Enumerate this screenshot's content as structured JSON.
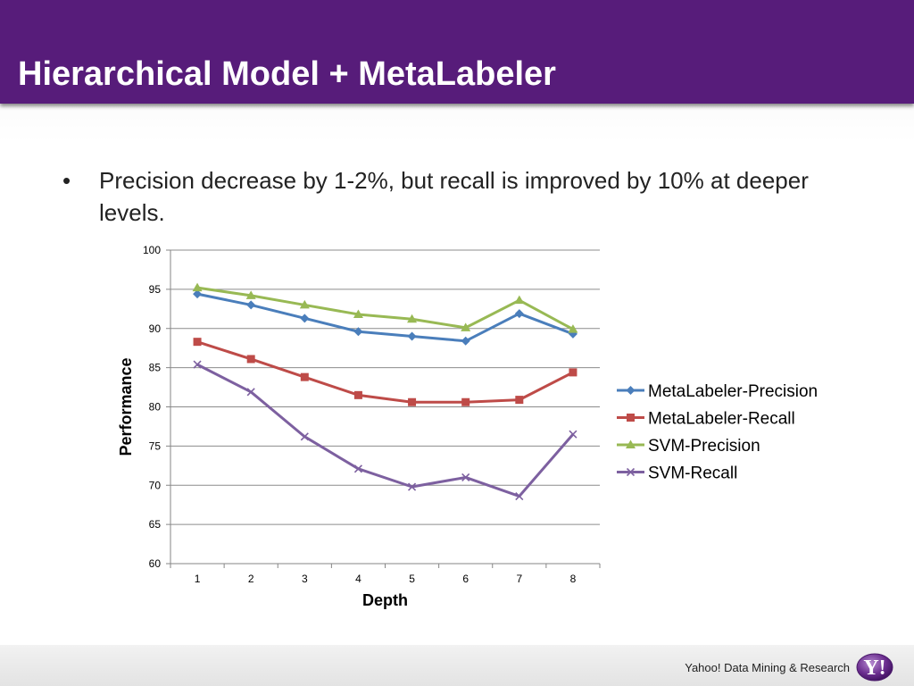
{
  "slide": {
    "title": "Hierarchical Model + MetaLabeler",
    "bullet_glyph": "•",
    "bullet": "Precision decrease by 1-2%, but recall is improved by 10% at deeper levels."
  },
  "footer": {
    "text": "Yahoo! Data Mining & Research",
    "logo_icon": "yahoo-logo-icon",
    "logo_text": "Y!"
  },
  "colors": {
    "title_bar": "#571c7a",
    "metalabeler_precision": "#4a7ebb",
    "metalabeler_recall": "#be4b48",
    "svm_precision": "#98b954",
    "svm_recall": "#7d60a0"
  },
  "chart_data": {
    "type": "line",
    "title": "",
    "xlabel": "Depth",
    "ylabel": "Performance",
    "x": [
      1,
      2,
      3,
      4,
      5,
      6,
      7,
      8
    ],
    "ylim": [
      60,
      100
    ],
    "yticks": [
      60,
      65,
      70,
      75,
      80,
      85,
      90,
      95,
      100
    ],
    "grid": true,
    "legend": "right",
    "series": [
      {
        "name": "MetaLabeler-Precision",
        "marker": "diamond",
        "color": "#4a7ebb",
        "values": [
          94.4,
          93.0,
          91.3,
          89.6,
          89.0,
          88.4,
          91.9,
          89.3
        ]
      },
      {
        "name": "MetaLabeler-Recall",
        "marker": "square",
        "color": "#be4b48",
        "values": [
          88.3,
          86.1,
          83.8,
          81.5,
          80.6,
          80.6,
          80.9,
          84.4
        ]
      },
      {
        "name": "SVM-Precision",
        "marker": "triangle",
        "color": "#98b954",
        "values": [
          95.2,
          94.2,
          93.0,
          91.8,
          91.2,
          90.1,
          93.6,
          89.9
        ]
      },
      {
        "name": "SVM-Recall",
        "marker": "x",
        "color": "#7d60a0",
        "values": [
          85.4,
          81.9,
          76.2,
          72.1,
          69.8,
          71.0,
          68.6,
          76.5
        ]
      }
    ]
  }
}
